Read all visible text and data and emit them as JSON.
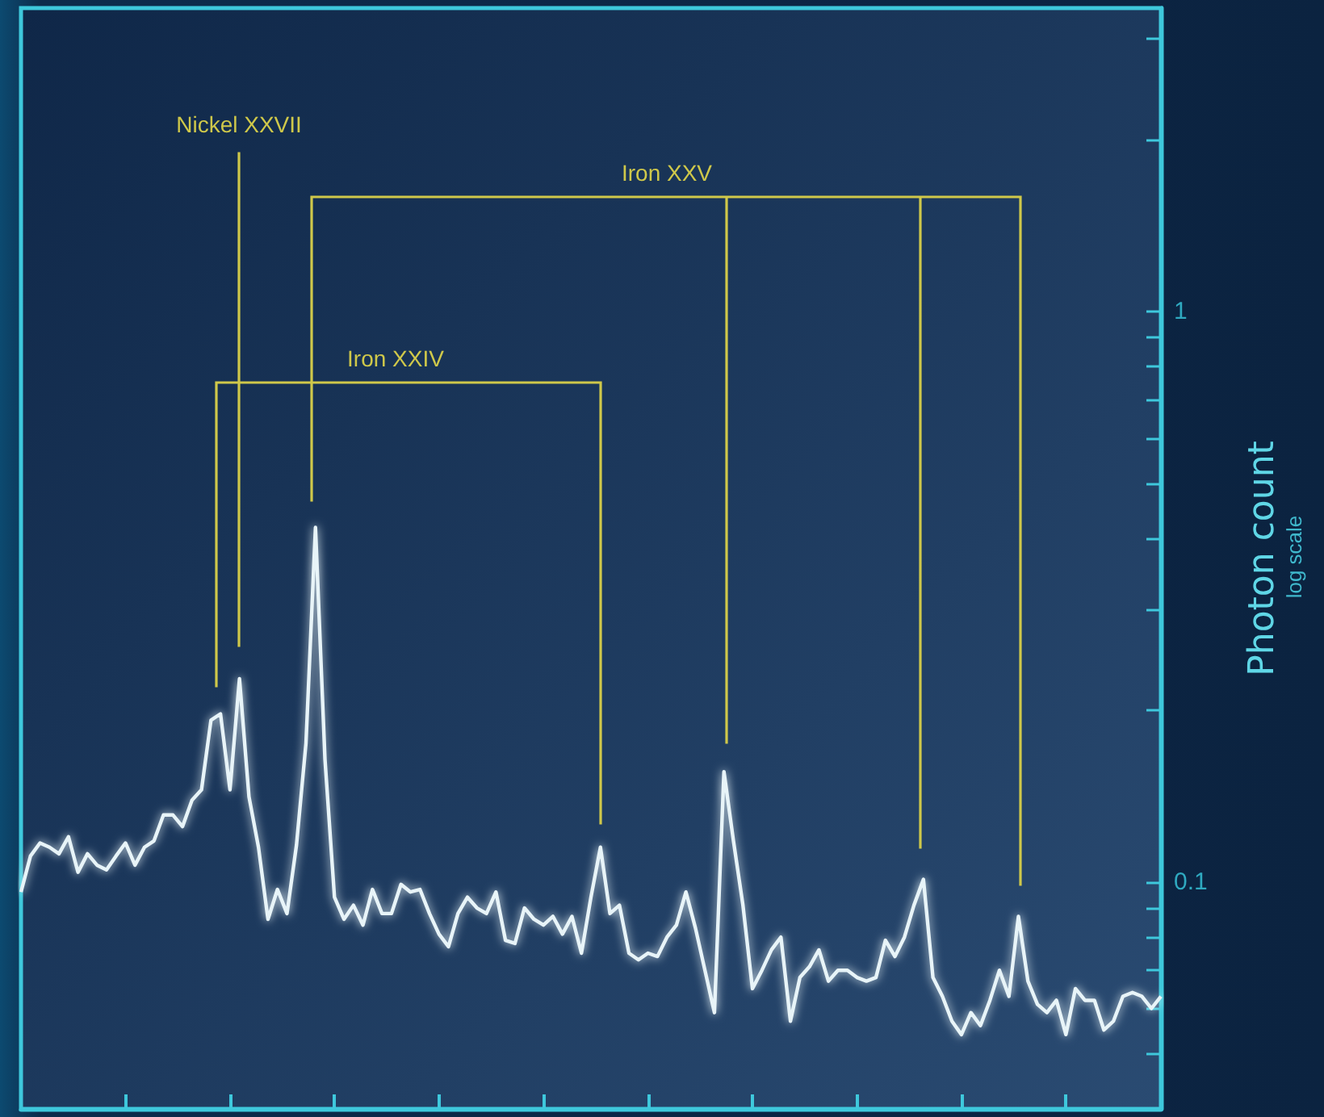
{
  "chart_data": {
    "type": "line",
    "ylabel": "Photon count",
    "annotations": [
      "Nickel XXVII",
      "Iron XXV",
      "Iron XXIV",
      "log scale"
    ],
    "categories": [
      null,
      null,
      null,
      null,
      null,
      null,
      null,
      null,
      null,
      null,
      null,
      null,
      null,
      null,
      null,
      null,
      null,
      null,
      null,
      null,
      null,
      null,
      null,
      null,
      null,
      null,
      null,
      null,
      null,
      null,
      null,
      null,
      null,
      null,
      null,
      null,
      null,
      null,
      null,
      null,
      null,
      null,
      null,
      null,
      null,
      null,
      null,
      null,
      null,
      null,
      null,
      null,
      null,
      null,
      null,
      null,
      null,
      null,
      null,
      null,
      null,
      null,
      null,
      null,
      null,
      null,
      null,
      null,
      null,
      null,
      null,
      null,
      null,
      null,
      null,
      null,
      null,
      null,
      null,
      null,
      null,
      null,
      null,
      null,
      null,
      null,
      null,
      null,
      null,
      null,
      null,
      null,
      null,
      null,
      null,
      null,
      null,
      null,
      null,
      null,
      null,
      null,
      null,
      null,
      null,
      null,
      null,
      null,
      null,
      null,
      null,
      null,
      null,
      null,
      null,
      null,
      null,
      null,
      null,
      null,
      null
    ],
    "series": [
      {
        "color": "#e8f4f8",
        "values": [
          0.096,
          0.111,
          0.117,
          0.115,
          0.112,
          0.12,
          0.104,
          0.112,
          0.107,
          0.105,
          0.111,
          0.117,
          0.107,
          0.115,
          0.118,
          0.131,
          0.131,
          0.125,
          0.139,
          0.145,
          0.192,
          0.197,
          0.145,
          0.227,
          0.141,
          0.115,
          0.086,
          0.097,
          0.088,
          0.116,
          0.175,
          0.418,
          0.164,
          0.094,
          0.086,
          0.091,
          0.084,
          0.097,
          0.088,
          0.088,
          0.099,
          0.096,
          0.097,
          0.088,
          0.081,
          0.077,
          0.088,
          0.094,
          0.09,
          0.088,
          0.096,
          0.079,
          0.078,
          0.09,
          0.086,
          0.084,
          0.087,
          0.081,
          0.087,
          0.075,
          0.094,
          0.115,
          0.088,
          0.091,
          0.075,
          0.073,
          0.075,
          0.074,
          0.08,
          0.084,
          0.096,
          0.083,
          0.07,
          0.059,
          0.156,
          0.118,
          0.091,
          0.065,
          0.07,
          0.076,
          0.08,
          0.057,
          0.068,
          0.071,
          0.076,
          0.067,
          0.07,
          0.07,
          0.068,
          0.067,
          0.068,
          0.079,
          0.074,
          0.08,
          0.091,
          0.101,
          0.068,
          0.063,
          0.057,
          0.054,
          0.059,
          0.056,
          0.062,
          0.07,
          0.063,
          0.087,
          0.067,
          0.061,
          0.059,
          0.062,
          0.054,
          0.065,
          0.062,
          0.062,
          0.055,
          0.057,
          0.063,
          0.064,
          0.063,
          0.06,
          0.063
        ]
      }
    ],
    "log": "y",
    "ylim": [
      0.04,
      3.4
    ],
    "yticks": [
      {
        "value": 0.05,
        "label": null
      },
      {
        "value": 0.06,
        "label": null
      },
      {
        "value": 0.07,
        "label": null
      },
      {
        "value": 0.08,
        "label": null
      },
      {
        "value": 0.09,
        "label": null
      },
      0.1,
      {
        "value": 0.2,
        "label": null
      },
      {
        "value": 0.3,
        "label": null
      },
      {
        "value": 0.4,
        "label": null
      },
      {
        "value": 0.5,
        "label": null
      },
      {
        "value": 0.6,
        "label": null
      },
      {
        "value": 0.7,
        "label": null
      },
      {
        "value": 0.8,
        "label": null
      },
      {
        "value": 0.9,
        "label": null
      },
      1,
      {
        "value": 2,
        "label": null
      },
      {
        "value": 3,
        "label": null
      }
    ],
    "tick_labels": "y",
    "grid": false
  }
}
